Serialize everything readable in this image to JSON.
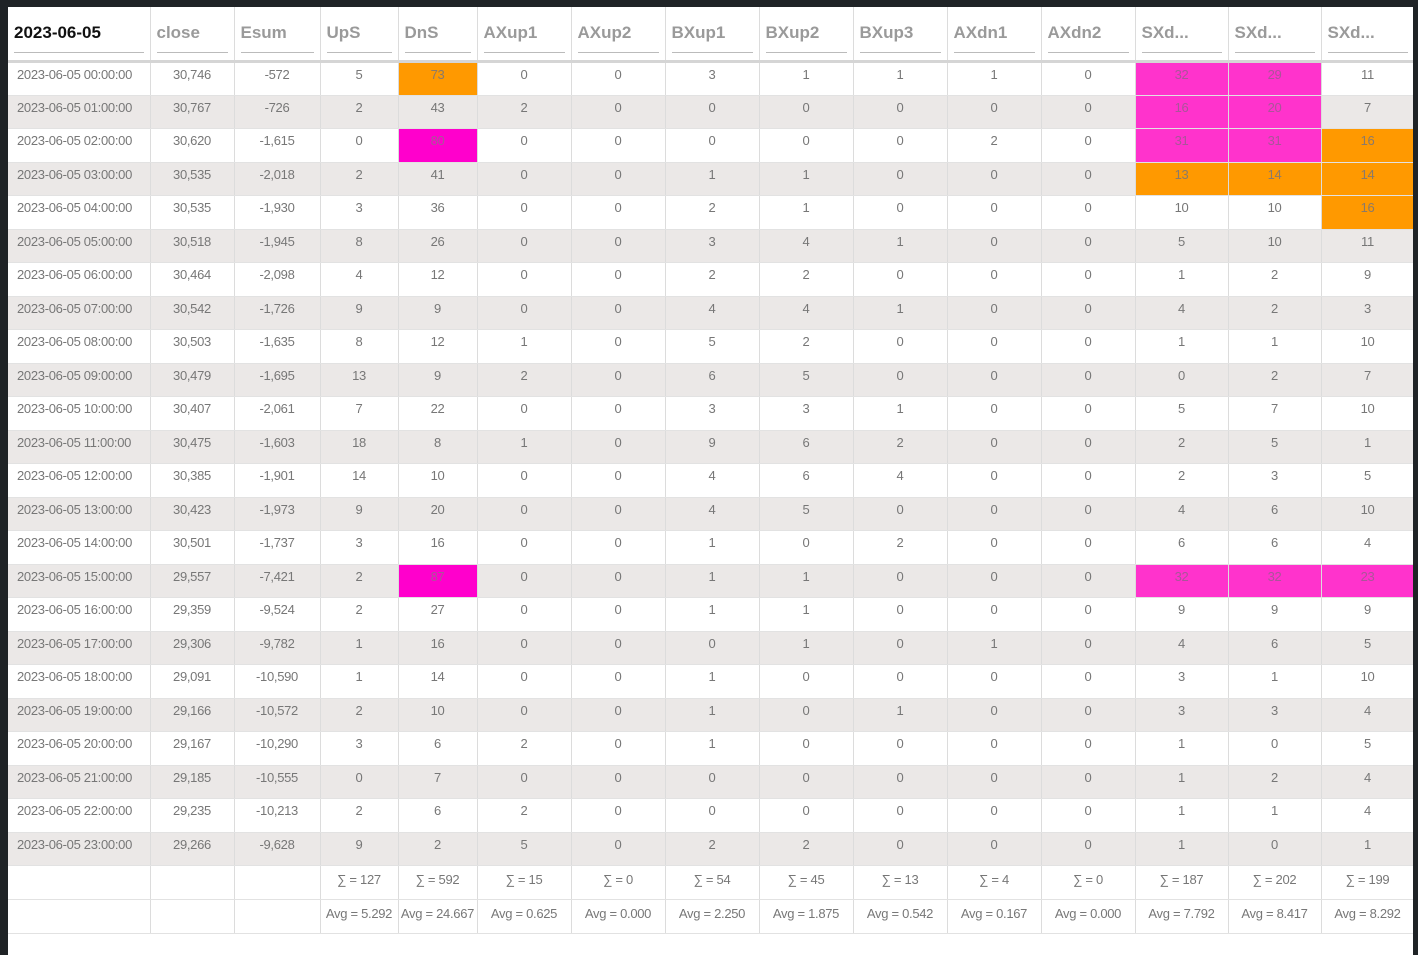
{
  "table": {
    "columns": [
      "2023-06-05",
      "close",
      "Esum",
      "UpS",
      "DnS",
      "AXup1",
      "AXup2",
      "BXup1",
      "BXup2",
      "BXup3",
      "AXdn1",
      "AXdn2",
      "SXd...",
      "SXd...",
      "SXd..."
    ],
    "rows": [
      [
        "2023-06-05 00:00:00",
        "30,746",
        "-572",
        "5",
        "73",
        "0",
        "0",
        "3",
        "1",
        "1",
        "1",
        "0",
        "32",
        "29",
        "11"
      ],
      [
        "2023-06-05 01:00:00",
        "30,767",
        "-726",
        "2",
        "43",
        "2",
        "0",
        "0",
        "0",
        "0",
        "0",
        "0",
        "16",
        "20",
        "7"
      ],
      [
        "2023-06-05 02:00:00",
        "30,620",
        "-1,615",
        "0",
        "80",
        "0",
        "0",
        "0",
        "0",
        "0",
        "2",
        "0",
        "31",
        "31",
        "16"
      ],
      [
        "2023-06-05 03:00:00",
        "30,535",
        "-2,018",
        "2",
        "41",
        "0",
        "0",
        "1",
        "1",
        "0",
        "0",
        "0",
        "13",
        "14",
        "14"
      ],
      [
        "2023-06-05 04:00:00",
        "30,535",
        "-1,930",
        "3",
        "36",
        "0",
        "0",
        "2",
        "1",
        "0",
        "0",
        "0",
        "10",
        "10",
        "16"
      ],
      [
        "2023-06-05 05:00:00",
        "30,518",
        "-1,945",
        "8",
        "26",
        "0",
        "0",
        "3",
        "4",
        "1",
        "0",
        "0",
        "5",
        "10",
        "11"
      ],
      [
        "2023-06-05 06:00:00",
        "30,464",
        "-2,098",
        "4",
        "12",
        "0",
        "0",
        "2",
        "2",
        "0",
        "0",
        "0",
        "1",
        "2",
        "9"
      ],
      [
        "2023-06-05 07:00:00",
        "30,542",
        "-1,726",
        "9",
        "9",
        "0",
        "0",
        "4",
        "4",
        "1",
        "0",
        "0",
        "4",
        "2",
        "3"
      ],
      [
        "2023-06-05 08:00:00",
        "30,503",
        "-1,635",
        "8",
        "12",
        "1",
        "0",
        "5",
        "2",
        "0",
        "0",
        "0",
        "1",
        "1",
        "10"
      ],
      [
        "2023-06-05 09:00:00",
        "30,479",
        "-1,695",
        "13",
        "9",
        "2",
        "0",
        "6",
        "5",
        "0",
        "0",
        "0",
        "0",
        "2",
        "7"
      ],
      [
        "2023-06-05 10:00:00",
        "30,407",
        "-2,061",
        "7",
        "22",
        "0",
        "0",
        "3",
        "3",
        "1",
        "0",
        "0",
        "5",
        "7",
        "10"
      ],
      [
        "2023-06-05 11:00:00",
        "30,475",
        "-1,603",
        "18",
        "8",
        "1",
        "0",
        "9",
        "6",
        "2",
        "0",
        "0",
        "2",
        "5",
        "1"
      ],
      [
        "2023-06-05 12:00:00",
        "30,385",
        "-1,901",
        "14",
        "10",
        "0",
        "0",
        "4",
        "6",
        "4",
        "0",
        "0",
        "2",
        "3",
        "5"
      ],
      [
        "2023-06-05 13:00:00",
        "30,423",
        "-1,973",
        "9",
        "20",
        "0",
        "0",
        "4",
        "5",
        "0",
        "0",
        "0",
        "4",
        "6",
        "10"
      ],
      [
        "2023-06-05 14:00:00",
        "30,501",
        "-1,737",
        "3",
        "16",
        "0",
        "0",
        "1",
        "0",
        "2",
        "0",
        "0",
        "6",
        "6",
        "4"
      ],
      [
        "2023-06-05 15:00:00",
        "29,557",
        "-7,421",
        "2",
        "87",
        "0",
        "0",
        "1",
        "1",
        "0",
        "0",
        "0",
        "32",
        "32",
        "23"
      ],
      [
        "2023-06-05 16:00:00",
        "29,359",
        "-9,524",
        "2",
        "27",
        "0",
        "0",
        "1",
        "1",
        "0",
        "0",
        "0",
        "9",
        "9",
        "9"
      ],
      [
        "2023-06-05 17:00:00",
        "29,306",
        "-9,782",
        "1",
        "16",
        "0",
        "0",
        "0",
        "1",
        "0",
        "1",
        "0",
        "4",
        "6",
        "5"
      ],
      [
        "2023-06-05 18:00:00",
        "29,091",
        "-10,590",
        "1",
        "14",
        "0",
        "0",
        "1",
        "0",
        "0",
        "0",
        "0",
        "3",
        "1",
        "10"
      ],
      [
        "2023-06-05 19:00:00",
        "29,166",
        "-10,572",
        "2",
        "10",
        "0",
        "0",
        "1",
        "0",
        "1",
        "0",
        "0",
        "3",
        "3",
        "4"
      ],
      [
        "2023-06-05 20:00:00",
        "29,167",
        "-10,290",
        "3",
        "6",
        "2",
        "0",
        "1",
        "0",
        "0",
        "0",
        "0",
        "1",
        "0",
        "5"
      ],
      [
        "2023-06-05 21:00:00",
        "29,185",
        "-10,555",
        "0",
        "7",
        "0",
        "0",
        "0",
        "0",
        "0",
        "0",
        "0",
        "1",
        "2",
        "4"
      ],
      [
        "2023-06-05 22:00:00",
        "29,235",
        "-10,213",
        "2",
        "6",
        "2",
        "0",
        "0",
        "0",
        "0",
        "0",
        "0",
        "1",
        "1",
        "4"
      ],
      [
        "2023-06-05 23:00:00",
        "29,266",
        "-9,628",
        "9",
        "2",
        "5",
        "0",
        "2",
        "2",
        "0",
        "0",
        "0",
        "1",
        "0",
        "1"
      ]
    ],
    "highlights": {
      "0": {
        "4": "orange",
        "12": "pink",
        "13": "pink"
      },
      "1": {
        "12": "pink",
        "13": "pink"
      },
      "2": {
        "4": "magenta",
        "12": "pink",
        "13": "pink",
        "14": "orange"
      },
      "3": {
        "12": "orange",
        "13": "orange",
        "14": "orange"
      },
      "4": {
        "14": "orange"
      },
      "15": {
        "4": "magenta",
        "12": "pink",
        "13": "pink",
        "14": "pink"
      }
    },
    "sums": [
      "",
      "",
      "",
      "∑ = 127",
      "∑ = 592",
      "∑ = 15",
      "∑ = 0",
      "∑ = 54",
      "∑ = 45",
      "∑ = 13",
      "∑ = 4",
      "∑ = 0",
      "∑ = 187",
      "∑ = 202",
      "∑ = 199"
    ],
    "averages": [
      "",
      "",
      "",
      "Avg = 5.292",
      "Avg = 24.667",
      "Avg = 0.625",
      "Avg = 0.000",
      "Avg = 2.250",
      "Avg = 1.875",
      "Avg = 0.542",
      "Avg = 0.167",
      "Avg = 0.000",
      "Avg = 7.792",
      "Avg = 8.417",
      "Avg = 8.292"
    ]
  },
  "colors": {
    "orange": "#ff9900",
    "magenta": "#ff00cc",
    "pink": "#ff33cc",
    "row_alt": "#ebe8e7"
  }
}
